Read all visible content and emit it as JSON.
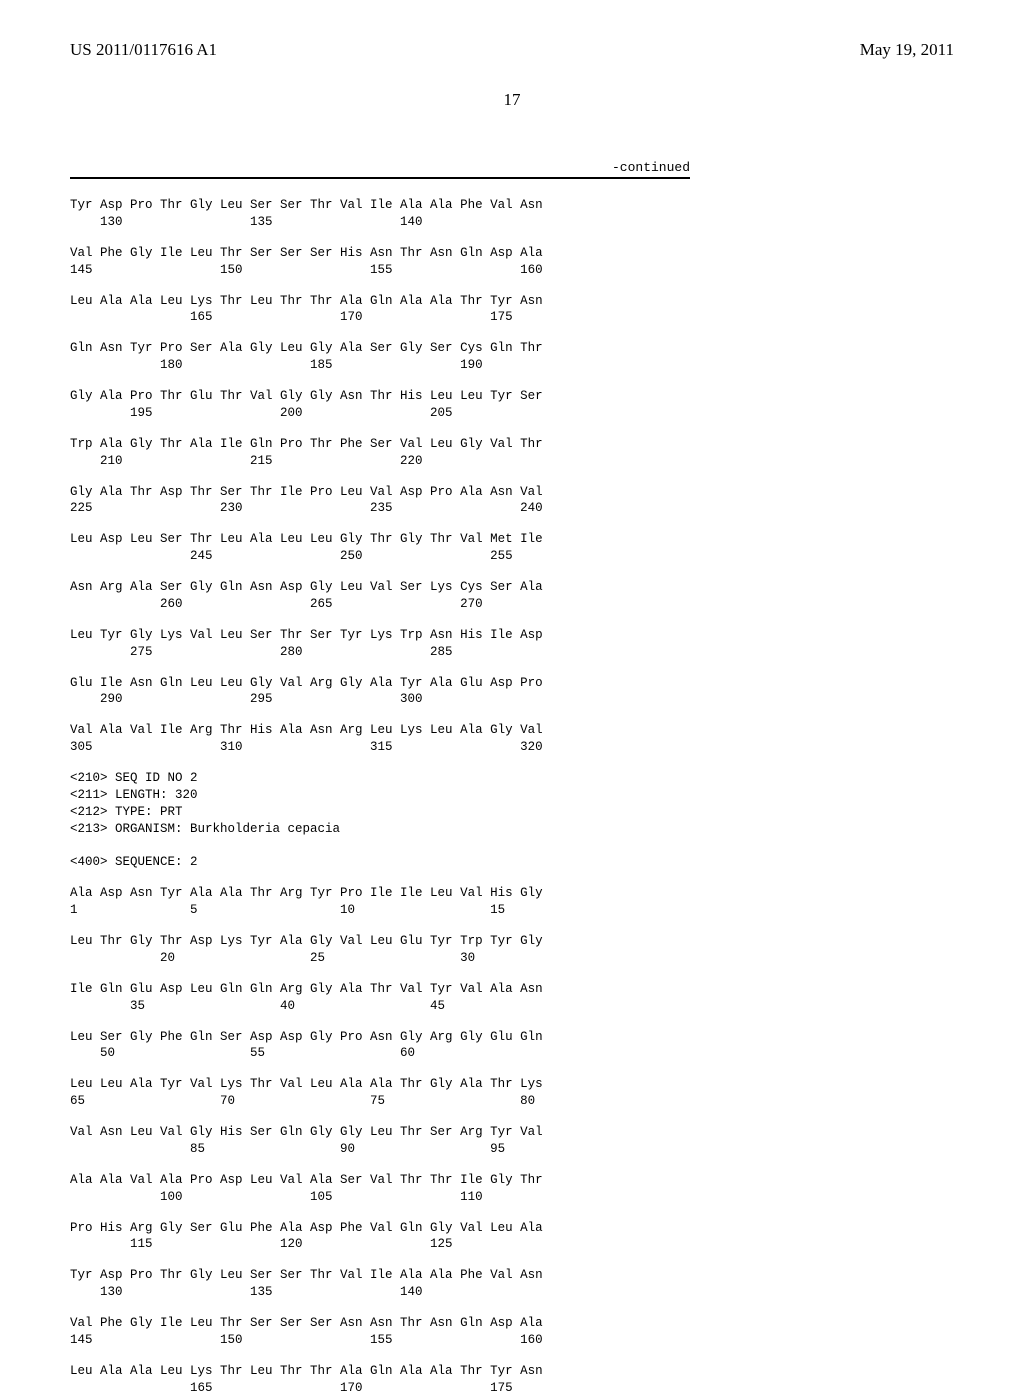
{
  "header": {
    "left": "US 2011/0117616 A1",
    "right": "May 19, 2011"
  },
  "page_number": "17",
  "continued_label": "-continued",
  "seq1_rows": [
    {
      "aa": "Tyr Asp Pro Thr Gly Leu Ser Ser Thr Val Ile Ala Ala Phe Val Asn",
      "nums": "    130                 135                 140"
    },
    {
      "aa": "Val Phe Gly Ile Leu Thr Ser Ser Ser His Asn Thr Asn Gln Asp Ala",
      "nums": "145                 150                 155                 160"
    },
    {
      "aa": "Leu Ala Ala Leu Lys Thr Leu Thr Thr Ala Gln Ala Ala Thr Tyr Asn",
      "nums": "                165                 170                 175"
    },
    {
      "aa": "Gln Asn Tyr Pro Ser Ala Gly Leu Gly Ala Ser Gly Ser Cys Gln Thr",
      "nums": "            180                 185                 190"
    },
    {
      "aa": "Gly Ala Pro Thr Glu Thr Val Gly Gly Asn Thr His Leu Leu Tyr Ser",
      "nums": "        195                 200                 205"
    },
    {
      "aa": "Trp Ala Gly Thr Ala Ile Gln Pro Thr Phe Ser Val Leu Gly Val Thr",
      "nums": "    210                 215                 220"
    },
    {
      "aa": "Gly Ala Thr Asp Thr Ser Thr Ile Pro Leu Val Asp Pro Ala Asn Val",
      "nums": "225                 230                 235                 240"
    },
    {
      "aa": "Leu Asp Leu Ser Thr Leu Ala Leu Leu Gly Thr Gly Thr Val Met Ile",
      "nums": "                245                 250                 255"
    },
    {
      "aa": "Asn Arg Ala Ser Gly Gln Asn Asp Gly Leu Val Ser Lys Cys Ser Ala",
      "nums": "            260                 265                 270"
    },
    {
      "aa": "Leu Tyr Gly Lys Val Leu Ser Thr Ser Tyr Lys Trp Asn His Ile Asp",
      "nums": "        275                 280                 285"
    },
    {
      "aa": "Glu Ile Asn Gln Leu Leu Gly Val Arg Gly Ala Tyr Ala Glu Asp Pro",
      "nums": "    290                 295                 300"
    },
    {
      "aa": "Val Ala Val Ile Arg Thr His Ala Asn Arg Leu Lys Leu Ala Gly Val",
      "nums": "305                 310                 315                 320"
    }
  ],
  "seq2_meta": [
    "<210> SEQ ID NO 2",
    "<211> LENGTH: 320",
    "<212> TYPE: PRT",
    "<213> ORGANISM: Burkholderia cepacia",
    "",
    "<400> SEQUENCE: 2"
  ],
  "seq2_rows": [
    {
      "aa": "Ala Asp Asn Tyr Ala Ala Thr Arg Tyr Pro Ile Ile Leu Val His Gly",
      "nums": "1               5                   10                  15"
    },
    {
      "aa": "Leu Thr Gly Thr Asp Lys Tyr Ala Gly Val Leu Glu Tyr Trp Tyr Gly",
      "nums": "            20                  25                  30"
    },
    {
      "aa": "Ile Gln Glu Asp Leu Gln Gln Arg Gly Ala Thr Val Tyr Val Ala Asn",
      "nums": "        35                  40                  45"
    },
    {
      "aa": "Leu Ser Gly Phe Gln Ser Asp Asp Gly Pro Asn Gly Arg Gly Glu Gln",
      "nums": "    50                  55                  60"
    },
    {
      "aa": "Leu Leu Ala Tyr Val Lys Thr Val Leu Ala Ala Thr Gly Ala Thr Lys",
      "nums": "65                  70                  75                  80"
    },
    {
      "aa": "Val Asn Leu Val Gly His Ser Gln Gly Gly Leu Thr Ser Arg Tyr Val",
      "nums": "                85                  90                  95"
    },
    {
      "aa": "Ala Ala Val Ala Pro Asp Leu Val Ala Ser Val Thr Thr Ile Gly Thr",
      "nums": "            100                 105                 110"
    },
    {
      "aa": "Pro His Arg Gly Ser Glu Phe Ala Asp Phe Val Gln Gly Val Leu Ala",
      "nums": "        115                 120                 125"
    },
    {
      "aa": "Tyr Asp Pro Thr Gly Leu Ser Ser Thr Val Ile Ala Ala Phe Val Asn",
      "nums": "    130                 135                 140"
    },
    {
      "aa": "Val Phe Gly Ile Leu Thr Ser Ser Ser Asn Asn Thr Asn Gln Asp Ala",
      "nums": "145                 150                 155                 160"
    },
    {
      "aa": "Leu Ala Ala Leu Lys Thr Leu Thr Thr Ala Gln Ala Ala Thr Tyr Asn",
      "nums": "                165                 170                 175"
    }
  ]
}
